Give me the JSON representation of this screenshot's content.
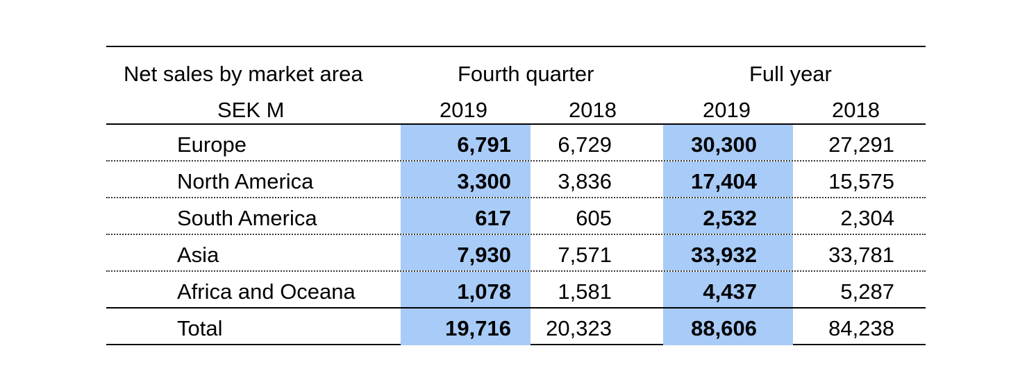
{
  "table": {
    "title": "Net sales by market area",
    "unit": "SEK M",
    "group_headers": [
      "Fourth quarter",
      "Full year"
    ],
    "year_headers": [
      "2019",
      "2018",
      "2019",
      "2018"
    ],
    "rows": [
      {
        "label": "Europe",
        "q4_2019": "6,791",
        "q4_2018": "6,729",
        "fy_2019": "30,300",
        "fy_2018": "27,291"
      },
      {
        "label": "North America",
        "q4_2019": "3,300",
        "q4_2018": "3,836",
        "fy_2019": "17,404",
        "fy_2018": "15,575"
      },
      {
        "label": "South America",
        "q4_2019": "617",
        "q4_2018": "605",
        "fy_2019": "2,532",
        "fy_2018": "2,304"
      },
      {
        "label": "Asia",
        "q4_2019": "7,930",
        "q4_2018": "7,571",
        "fy_2019": "33,932",
        "fy_2018": "33,781"
      },
      {
        "label": "Africa and Oceana",
        "q4_2019": "1,078",
        "q4_2018": "1,581",
        "fy_2019": "4,437",
        "fy_2018": "5,287"
      }
    ],
    "total": {
      "label": "Total",
      "q4_2019": "19,716",
      "q4_2018": "20,323",
      "fy_2019": "88,606",
      "fy_2018": "84,238"
    },
    "highlight_color": "#a8cbf7"
  }
}
